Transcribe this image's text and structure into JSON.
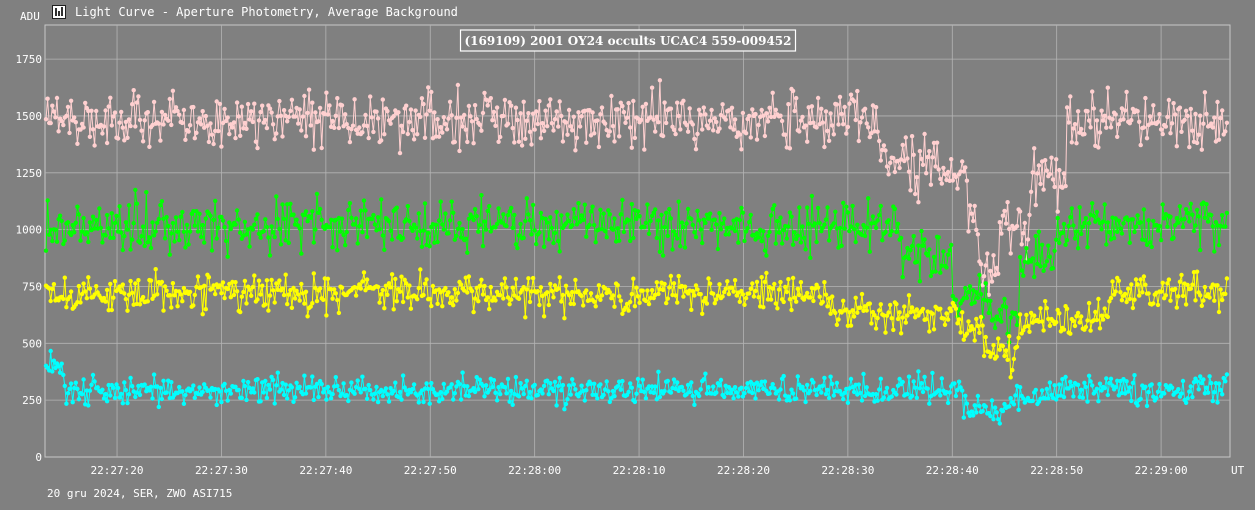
{
  "window": {
    "title": "Light Curve - Aperture Photometry, Average Background",
    "icon": "chart-window-icon"
  },
  "chart_data": {
    "type": "line",
    "title": "(169109) 2001 OY24 occults UCAC4 559-009452",
    "ylabel": "ADU",
    "xlabel": "UT",
    "footer": "20 gru 2024, SER, ZWO ASI715",
    "ylim": [
      0,
      1900
    ],
    "yticks": [
      0,
      250,
      500,
      750,
      1000,
      1250,
      1500,
      1750
    ],
    "xlim": [
      "22:27:13.1",
      "22:29:06.6"
    ],
    "xticks": [
      "22:27:20",
      "22:27:30",
      "22:27:40",
      "22:27:50",
      "22:28:00",
      "22:28:10",
      "22:28:20",
      "22:28:30",
      "22:28:40",
      "22:28:50",
      "22:29:00"
    ],
    "grid": true,
    "legend": "none",
    "sampling": {
      "start": "22:27:13.2",
      "step_s": 0.15,
      "count": 755
    },
    "series": [
      {
        "color": "#ffd0d0",
        "baseline": 1480,
        "noise": 110,
        "seed": 7,
        "events": [
          {
            "start": "22:28:33.0",
            "end": "22:28:41.5",
            "level": 1280
          },
          {
            "start": "22:28:41.5",
            "end": "22:28:42.5",
            "level": 1050
          },
          {
            "start": "22:28:42.5",
            "end": "22:28:44.5",
            "level": 800
          },
          {
            "start": "22:28:44.5",
            "end": "22:28:47.5",
            "level": 1000
          },
          {
            "start": "22:28:47.5",
            "end": "22:28:51.0",
            "level": 1250
          }
        ]
      },
      {
        "color": "#00ff00",
        "baseline": 1020,
        "noise": 100,
        "seed": 13,
        "events": [
          {
            "start": "22:28:35.0",
            "end": "22:28:40.0",
            "level": 900
          },
          {
            "start": "22:28:40.0",
            "end": "22:28:43.5",
            "level": 680
          },
          {
            "start": "22:28:43.5",
            "end": "22:28:46.5",
            "level": 600
          },
          {
            "start": "22:28:46.5",
            "end": "22:28:50.0",
            "level": 880
          }
        ]
      },
      {
        "color": "#ffff00",
        "baseline": 720,
        "noise": 70,
        "seed": 29,
        "events": [
          {
            "start": "22:28:28.0",
            "end": "22:28:40.5",
            "level": 630
          },
          {
            "start": "22:28:40.5",
            "end": "22:28:43.0",
            "level": 560
          },
          {
            "start": "22:28:43.0",
            "end": "22:28:46.5",
            "level": 450
          },
          {
            "start": "22:28:46.5",
            "end": "22:28:55.0",
            "level": 610
          }
        ]
      },
      {
        "color": "#00ffff",
        "baseline": 295,
        "noise": 55,
        "seed": 41,
        "events": [
          {
            "start": "22:27:13.1",
            "end": "22:27:15.0",
            "level": 400
          },
          {
            "start": "22:28:41.0",
            "end": "22:28:45.5",
            "level": 215
          },
          {
            "start": "22:28:45.5",
            "end": "22:28:48.5",
            "level": 270
          }
        ]
      }
    ]
  }
}
